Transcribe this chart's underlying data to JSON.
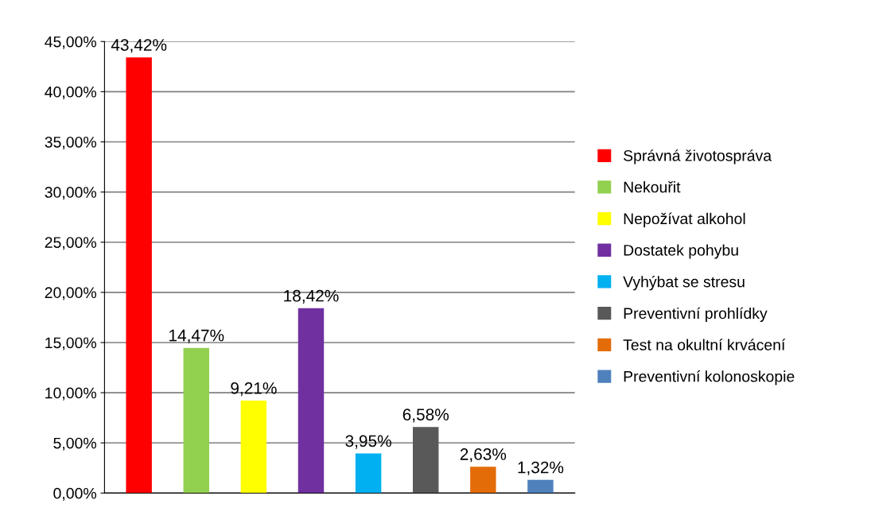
{
  "chart_data": {
    "type": "bar",
    "categories": [
      null,
      null,
      null,
      null,
      null,
      null,
      null,
      null
    ],
    "series": [
      {
        "name": "Správná životospráva",
        "color": "#ff0000",
        "values": [
          43.42,
          null,
          null,
          null,
          null,
          null,
          null,
          null
        ],
        "value_labels": [
          "43,42%",
          null,
          null,
          null,
          null,
          null,
          null,
          null
        ]
      },
      {
        "name": "Nekouřit",
        "color": "#92d050",
        "values": [
          null,
          14.47,
          null,
          null,
          null,
          null,
          null,
          null
        ],
        "value_labels": [
          null,
          "14,47%",
          null,
          null,
          null,
          null,
          null,
          null
        ]
      },
      {
        "name": "Nepožívat alkohol",
        "color": "#ffff00",
        "values": [
          null,
          null,
          9.21,
          null,
          null,
          null,
          null,
          null
        ],
        "value_labels": [
          null,
          null,
          "9,21%",
          null,
          null,
          null,
          null,
          null
        ]
      },
      {
        "name": "Dostatek pohybu",
        "color": "#7030a0",
        "values": [
          null,
          null,
          null,
          18.42,
          null,
          null,
          null,
          null
        ],
        "value_labels": [
          null,
          null,
          null,
          "18,42%",
          null,
          null,
          null,
          null
        ]
      },
      {
        "name": "Vyhýbat se stresu",
        "color": "#00b0f0",
        "values": [
          null,
          null,
          null,
          null,
          3.95,
          null,
          null,
          null
        ],
        "value_labels": [
          null,
          null,
          null,
          null,
          "3,95%",
          null,
          null,
          null
        ]
      },
      {
        "name": "Preventivní prohlídky",
        "color": "#595959",
        "values": [
          null,
          null,
          null,
          null,
          null,
          6.58,
          null,
          null
        ],
        "value_labels": [
          null,
          null,
          null,
          null,
          null,
          "6,58%",
          null,
          null
        ]
      },
      {
        "name": "Test na okultní krvácení",
        "color": "#e36c09",
        "values": [
          null,
          null,
          null,
          null,
          null,
          null,
          2.63,
          null
        ],
        "value_labels": [
          null,
          null,
          null,
          null,
          null,
          null,
          "2,63%",
          null
        ]
      },
      {
        "name": "Preventivní kolonoskopie",
        "color": "#4f81bd",
        "values": [
          null,
          null,
          null,
          null,
          null,
          null,
          null,
          1.32
        ],
        "value_labels": [
          null,
          null,
          null,
          null,
          null,
          null,
          null,
          "1,32%"
        ]
      }
    ],
    "ylim": [
      0,
      45
    ],
    "yticks": [
      {
        "value": 0,
        "label": "0,00%"
      },
      {
        "value": 5,
        "label": "5,00%"
      },
      {
        "value": 10,
        "label": "10,00%"
      },
      {
        "value": 15,
        "label": "15,00%"
      },
      {
        "value": 20,
        "label": "20,00%"
      },
      {
        "value": 25,
        "label": "25,00%"
      },
      {
        "value": 30,
        "label": "30,00%"
      },
      {
        "value": 35,
        "label": "35,00%"
      },
      {
        "value": 40,
        "label": "40,00%"
      },
      {
        "value": 45,
        "label": "45,00%"
      }
    ],
    "grid": "y",
    "legend": "right"
  }
}
